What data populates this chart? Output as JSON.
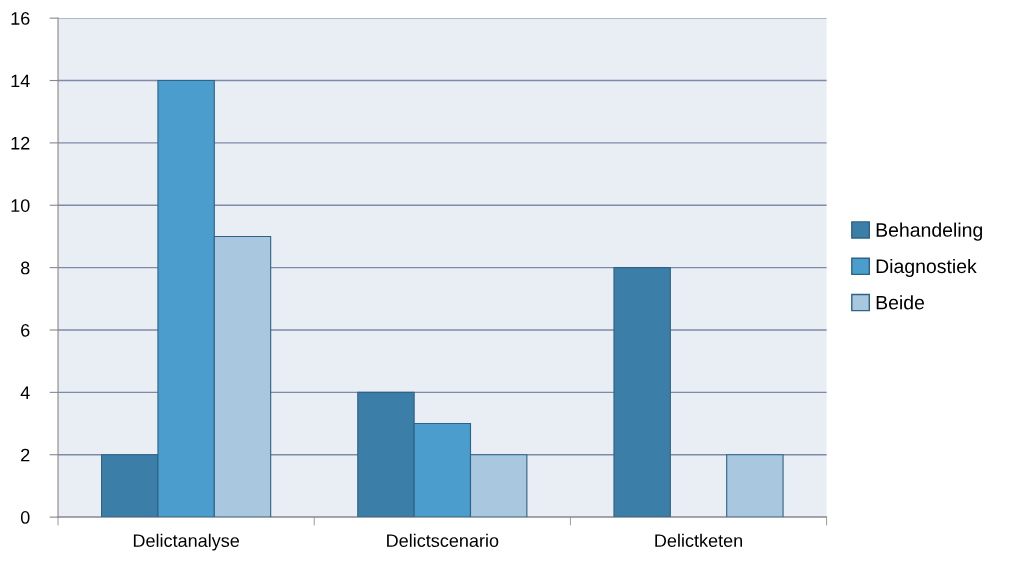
{
  "chart_data": {
    "type": "bar",
    "categories": [
      "Delictanalyse",
      "Delictscenario",
      "Delictketen"
    ],
    "series": [
      {
        "name": "Behandeling",
        "color": "#3b7ea8",
        "values": [
          2,
          4,
          8
        ]
      },
      {
        "name": "Diagnostiek",
        "color": "#4a9dcc",
        "values": [
          14,
          3,
          null
        ]
      },
      {
        "name": "Beide",
        "color": "#a9c7df",
        "values": [
          9,
          2,
          2
        ]
      }
    ],
    "ylim": [
      0,
      16
    ],
    "yticks": [
      0,
      2,
      4,
      6,
      8,
      10,
      12,
      14,
      16
    ],
    "grid": "y",
    "legend": "right"
  }
}
